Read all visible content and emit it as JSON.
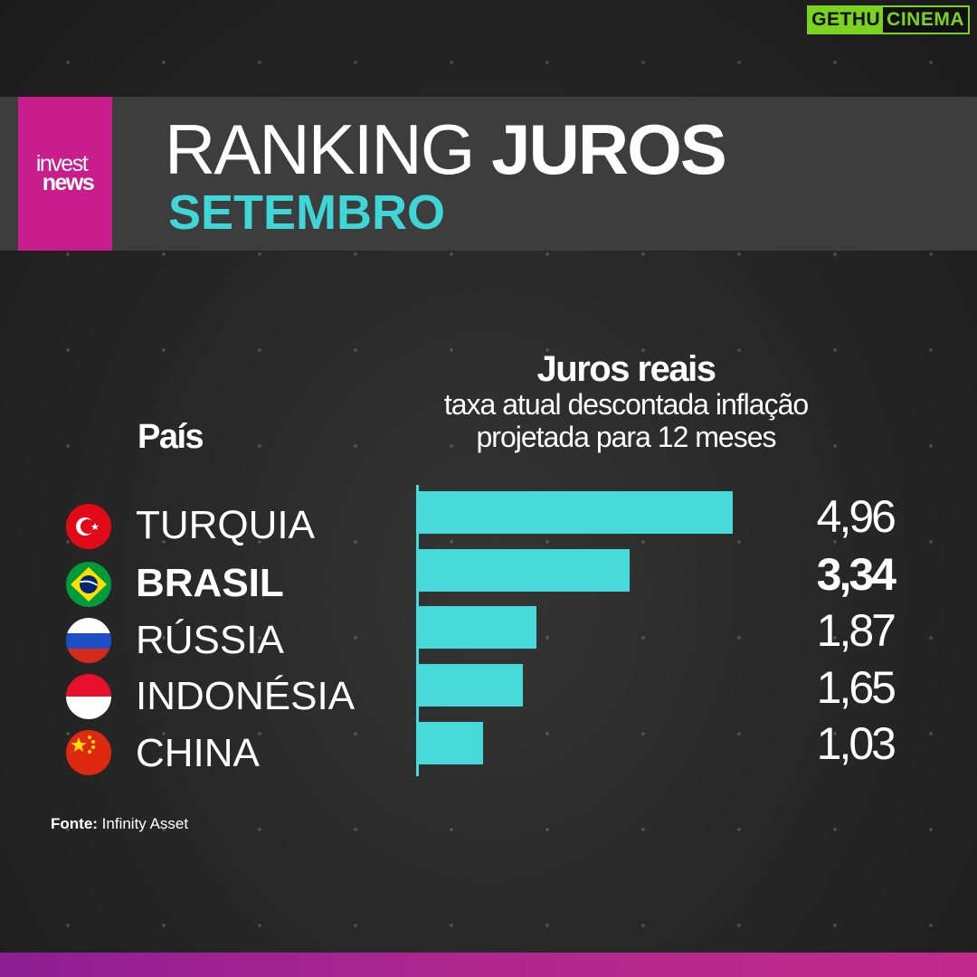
{
  "watermark": {
    "part1": "GETHU",
    "part2": "CINEMA"
  },
  "logo": {
    "line1": "invest",
    "line2": "news"
  },
  "header": {
    "title_light": "RANKING",
    "title_bold": "JUROS",
    "subtitle": "SETEMBRO"
  },
  "columns": {
    "country_header": "País",
    "value_header": "Juros reais",
    "value_sub1": "taxa atual descontada inflação",
    "value_sub2": "projetada para 12 meses"
  },
  "rows": [
    {
      "country": "TURQUIA",
      "value": "4,96",
      "flag": "turkey-flag-icon"
    },
    {
      "country": "BRASIL",
      "value": "3,34",
      "flag": "brazil-flag-icon"
    },
    {
      "country": "RÚSSIA",
      "value": "1,87",
      "flag": "russia-flag-icon"
    },
    {
      "country": "INDONÉSIA",
      "value": "1,65",
      "flag": "indonesia-flag-icon"
    },
    {
      "country": "CHINA",
      "value": "1,03",
      "flag": "china-flag-icon"
    }
  ],
  "source": {
    "label": "Fonte:",
    "value": "Infinity Asset"
  },
  "colors": {
    "accent": "#48dadb",
    "brand": "#c91c8d",
    "watermark": "#7bd31f"
  },
  "chart_data": {
    "type": "bar",
    "orientation": "horizontal",
    "title": "Juros reais",
    "subtitle": "taxa atual descontada inflação projetada para 12 meses",
    "categories": [
      "TURQUIA",
      "BRASIL",
      "RÚSSIA",
      "INDONÉSIA",
      "CHINA"
    ],
    "values": [
      4.96,
      3.34,
      1.87,
      1.65,
      1.03
    ],
    "highlight": "BRASIL",
    "bar_color": "#48dadb",
    "grid": false,
    "legend": "none"
  }
}
